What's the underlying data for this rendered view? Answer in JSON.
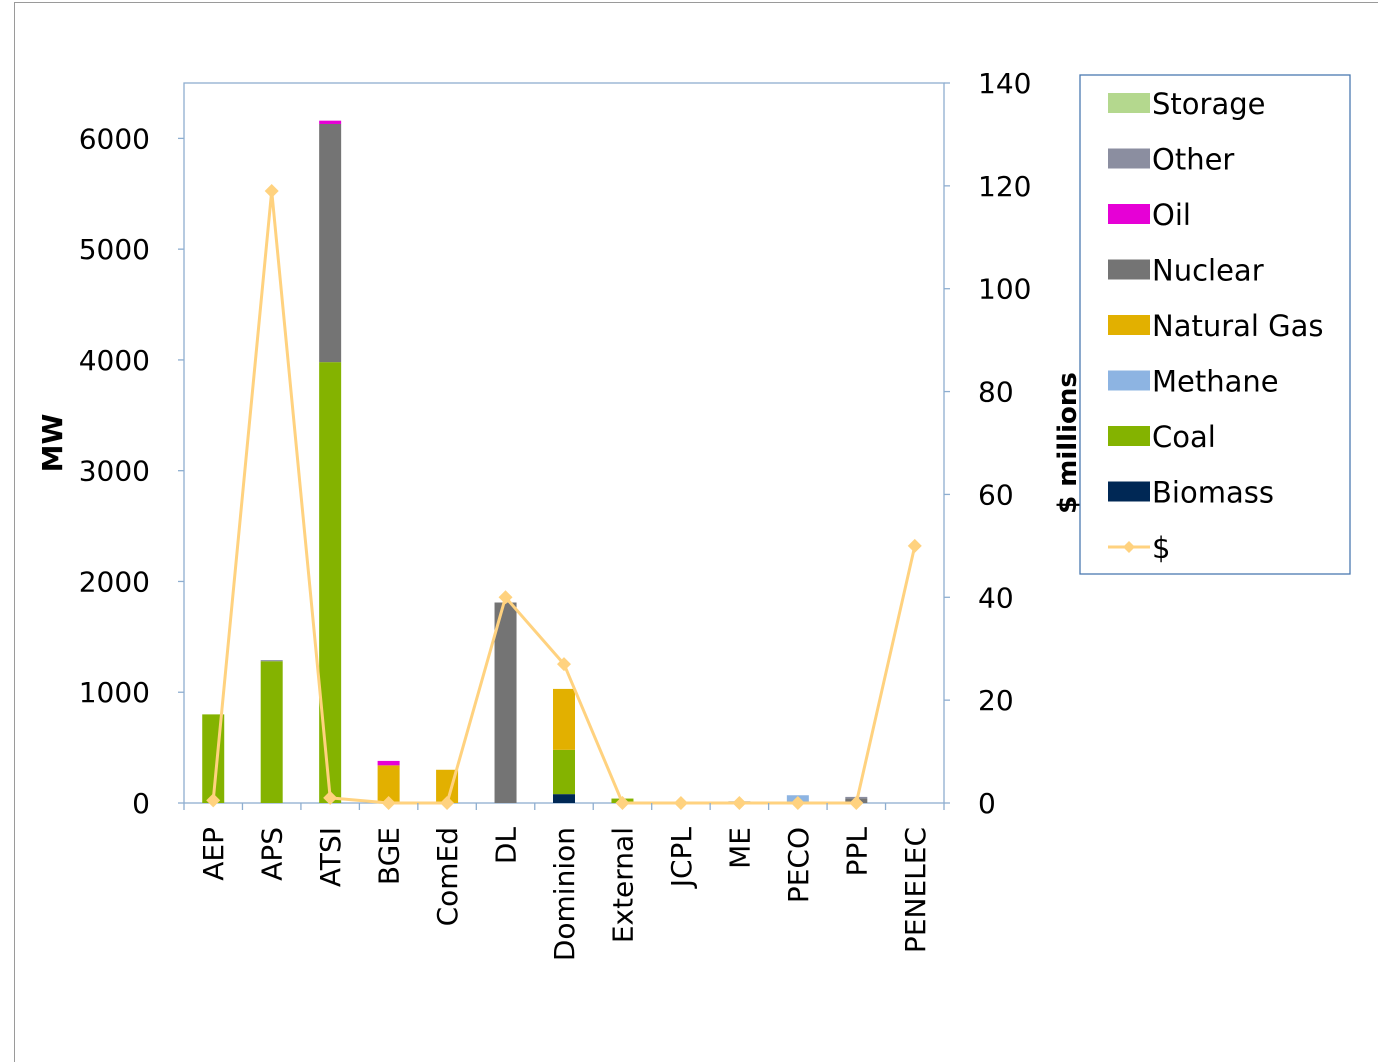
{
  "chart_data": {
    "type": "bar",
    "stacked": true,
    "categories": [
      "AEP",
      "APS",
      "ATSI",
      "BGE",
      "ComEd",
      "DL",
      "Dominion",
      "External",
      "JCPL",
      "ME",
      "PECO",
      "PPL",
      "PENELEC"
    ],
    "ylabel": "MW",
    "y2label": "$ millions",
    "ylim": [
      0,
      6500
    ],
    "y2lim": [
      0,
      140
    ],
    "yticks": [
      0,
      1000,
      2000,
      3000,
      4000,
      5000,
      6000
    ],
    "y2ticks": [
      0,
      20,
      40,
      60,
      80,
      100,
      120,
      140
    ],
    "legend_position": "right",
    "grid": false,
    "series": [
      {
        "name": "Biomass",
        "color": "#002855",
        "values": [
          0,
          0,
          0,
          0,
          0,
          0,
          80,
          0,
          0,
          0,
          0,
          0,
          0
        ]
      },
      {
        "name": "Coal",
        "color": "#84b300",
        "values": [
          800,
          1280,
          3980,
          0,
          0,
          0,
          400,
          40,
          0,
          0,
          0,
          0,
          0
        ]
      },
      {
        "name": "Methane",
        "color": "#8db4e2",
        "values": [
          0,
          0,
          0,
          0,
          0,
          0,
          0,
          0,
          0,
          0,
          70,
          0,
          0
        ]
      },
      {
        "name": "Natural Gas",
        "color": "#e2b000",
        "values": [
          0,
          0,
          0,
          340,
          300,
          0,
          550,
          0,
          0,
          0,
          0,
          0,
          0
        ]
      },
      {
        "name": "Nuclear",
        "color": "#747474",
        "values": [
          0,
          0,
          2150,
          0,
          0,
          1810,
          0,
          0,
          0,
          15,
          0,
          40,
          0
        ]
      },
      {
        "name": "Oil",
        "color": "#e600d6",
        "values": [
          0,
          0,
          30,
          40,
          0,
          0,
          0,
          0,
          0,
          0,
          0,
          0,
          0
        ]
      },
      {
        "name": "Other",
        "color": "#8b8ea0",
        "values": [
          0,
          10,
          0,
          0,
          0,
          0,
          0,
          0,
          0,
          0,
          0,
          15,
          0
        ]
      },
      {
        "name": "Storage",
        "color": "#b4d88e",
        "values": [
          0,
          0,
          0,
          0,
          0,
          0,
          0,
          0,
          0,
          0,
          0,
          0,
          0
        ]
      }
    ],
    "line_series": {
      "name": "$",
      "color": "#ffd27f",
      "axis": "right",
      "values": [
        0.5,
        119,
        1,
        0,
        0,
        40,
        27,
        0,
        0,
        0,
        0,
        0,
        50
      ]
    },
    "legend_order": [
      "Storage",
      "Other",
      "Oil",
      "Nuclear",
      "Natural Gas",
      "Methane",
      "Coal",
      "Biomass",
      "$"
    ]
  }
}
